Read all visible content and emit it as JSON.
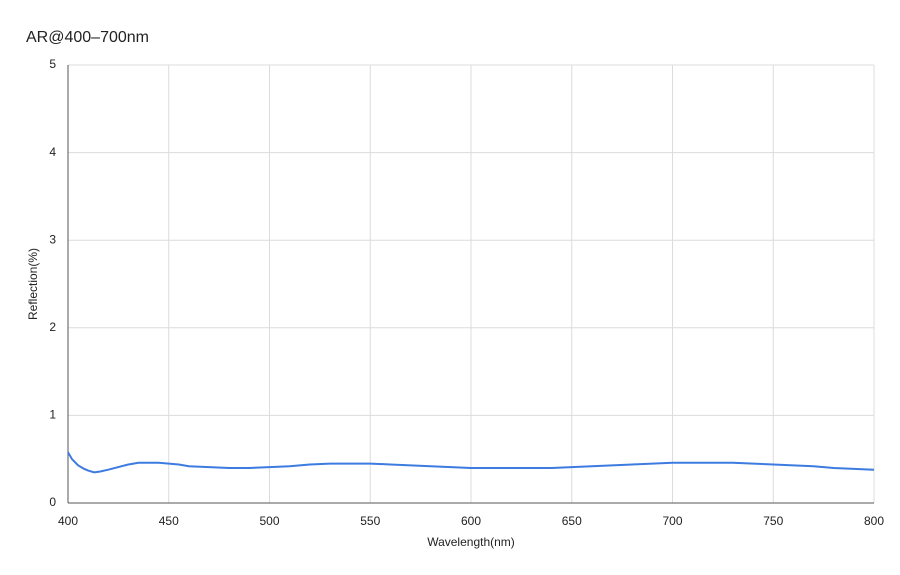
{
  "chart_data": {
    "type": "line",
    "title": "AR@400–700nm",
    "x_label": "Wavelength(nm)",
    "y_label": "Reflection(%)",
    "x": [
      400,
      402,
      405,
      408,
      410,
      413,
      416,
      420,
      425,
      430,
      435,
      440,
      445,
      450,
      455,
      460,
      470,
      480,
      490,
      500,
      510,
      520,
      530,
      540,
      550,
      560,
      570,
      580,
      590,
      600,
      610,
      620,
      630,
      640,
      650,
      660,
      670,
      680,
      690,
      700,
      710,
      720,
      730,
      740,
      750,
      760,
      770,
      780,
      790,
      800
    ],
    "series": [
      {
        "name": "Reflection",
        "color": "#3d7be0",
        "values": [
          0.58,
          0.5,
          0.43,
          0.39,
          0.37,
          0.35,
          0.36,
          0.38,
          0.41,
          0.44,
          0.46,
          0.46,
          0.46,
          0.45,
          0.44,
          0.42,
          0.41,
          0.4,
          0.4,
          0.41,
          0.42,
          0.44,
          0.45,
          0.45,
          0.45,
          0.44,
          0.43,
          0.42,
          0.41,
          0.4,
          0.4,
          0.4,
          0.4,
          0.4,
          0.41,
          0.42,
          0.43,
          0.44,
          0.45,
          0.46,
          0.46,
          0.46,
          0.46,
          0.45,
          0.44,
          0.43,
          0.42,
          0.4,
          0.39,
          0.38
        ]
      }
    ],
    "xlim": [
      400,
      800
    ],
    "xticks": [
      400,
      450,
      500,
      550,
      600,
      650,
      700,
      750,
      800
    ],
    "ylim": [
      0,
      5
    ],
    "yticks": [
      0,
      1,
      2,
      3,
      4,
      5
    ],
    "grid": true
  }
}
